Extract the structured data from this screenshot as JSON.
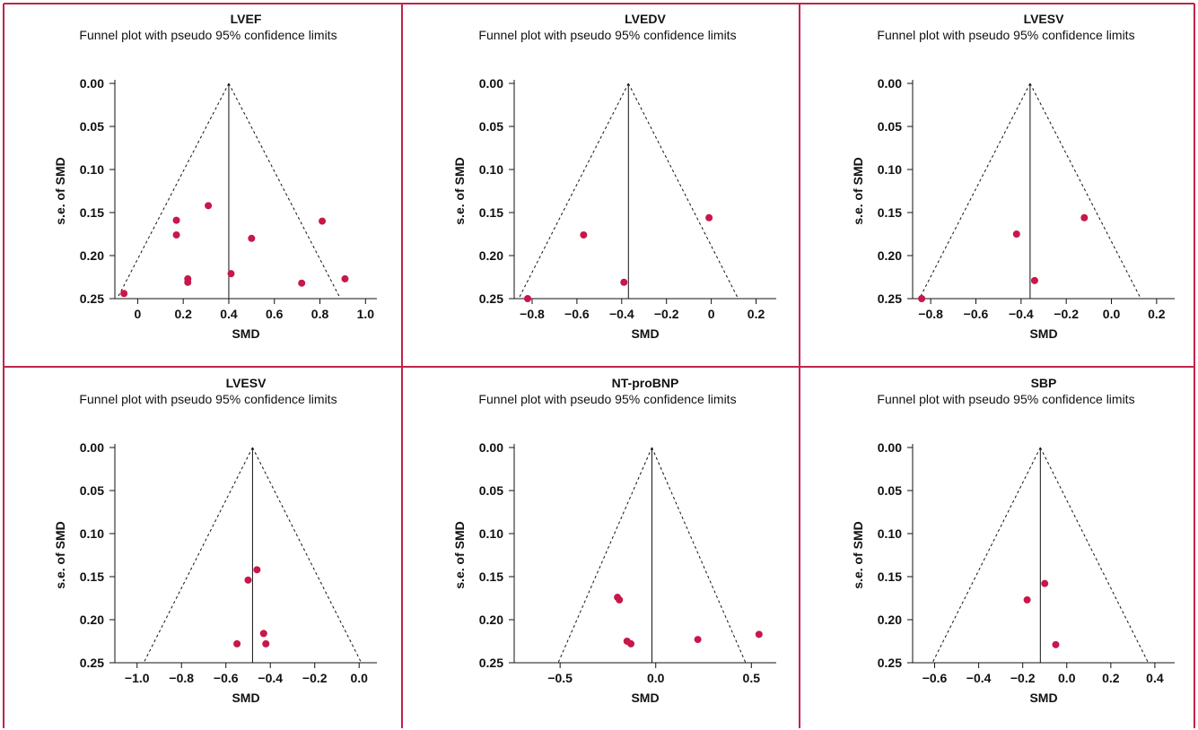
{
  "colors": {
    "point": "#c8174a",
    "border": "#c0244a",
    "axis": "#111111"
  },
  "chart_data": [
    {
      "type": "scatter",
      "title": "LVEF",
      "subtitle": "Funnel plot with pseudo 95% confidence limits",
      "xlabel": "SMD",
      "ylabel": "s.e. of SMD",
      "xlim": [
        -0.1,
        1.05
      ],
      "ylim": [
        0.25,
        0.0
      ],
      "xticks": [
        0,
        0.2,
        0.4,
        0.6,
        0.8,
        1.0
      ],
      "xtick_labels": [
        "0",
        "0.2",
        "0.4",
        "0.6",
        "0.8",
        "1.0"
      ],
      "yticks": [
        0.0,
        0.05,
        0.1,
        0.15,
        0.2,
        0.25
      ],
      "ytick_labels": [
        "0.00",
        "0.05",
        "0.10",
        "0.15",
        "0.20",
        "0.25"
      ],
      "pooled_effect": 0.4,
      "points": [
        {
          "x": -0.06,
          "y": 0.244
        },
        {
          "x": 0.17,
          "y": 0.159
        },
        {
          "x": 0.17,
          "y": 0.176
        },
        {
          "x": 0.22,
          "y": 0.227
        },
        {
          "x": 0.22,
          "y": 0.231
        },
        {
          "x": 0.31,
          "y": 0.142
        },
        {
          "x": 0.41,
          "y": 0.221
        },
        {
          "x": 0.5,
          "y": 0.18
        },
        {
          "x": 0.72,
          "y": 0.232
        },
        {
          "x": 0.81,
          "y": 0.16
        },
        {
          "x": 0.91,
          "y": 0.227
        }
      ]
    },
    {
      "type": "scatter",
      "title": "LVEDV",
      "subtitle": "Funnel plot with pseudo 95% confidence limits",
      "xlabel": "SMD",
      "ylabel": "s.e. of SMD",
      "xlim": [
        -0.88,
        0.29
      ],
      "ylim": [
        0.25,
        0.0
      ],
      "xticks": [
        -0.8,
        -0.6,
        -0.4,
        -0.2,
        0,
        0.2
      ],
      "xtick_labels": [
        "−0.8",
        "−0.6",
        "−0.4",
        "−0.2",
        "0",
        "0.2"
      ],
      "yticks": [
        0.0,
        0.05,
        0.1,
        0.15,
        0.2,
        0.25
      ],
      "ytick_labels": [
        "0.00",
        "0.05",
        "0.10",
        "0.15",
        "0.20",
        "0.25"
      ],
      "pooled_effect": -0.37,
      "points": [
        {
          "x": -0.82,
          "y": 0.25
        },
        {
          "x": -0.57,
          "y": 0.176
        },
        {
          "x": -0.39,
          "y": 0.231
        },
        {
          "x": -0.01,
          "y": 0.156
        }
      ]
    },
    {
      "type": "scatter",
      "title": "LVESV",
      "subtitle": "Funnel plot with pseudo 95% confidence limits",
      "xlabel": "SMD",
      "ylabel": "s.e. of SMD",
      "xlim": [
        -0.88,
        0.28
      ],
      "ylim": [
        0.25,
        0.0
      ],
      "xticks": [
        -0.8,
        -0.6,
        -0.4,
        -0.2,
        0,
        0.2
      ],
      "xtick_labels": [
        "−0.8",
        "−0.6",
        "−0.4",
        "−0.2",
        "0.0",
        "0.2"
      ],
      "yticks": [
        0.0,
        0.05,
        0.1,
        0.15,
        0.2,
        0.25
      ],
      "ytick_labels": [
        "0.00",
        "0.05",
        "0.10",
        "0.15",
        "0.20",
        "0.25"
      ],
      "pooled_effect": -0.36,
      "points": [
        {
          "x": -0.84,
          "y": 0.25
        },
        {
          "x": -0.42,
          "y": 0.175
        },
        {
          "x": -0.34,
          "y": 0.229
        },
        {
          "x": -0.12,
          "y": 0.156
        }
      ]
    },
    {
      "type": "scatter",
      "title": "LVESV",
      "subtitle": "Funnel plot with pseudo 95% confidence limits",
      "xlabel": "SMD",
      "ylabel": "s.e. of SMD",
      "xlim": [
        -1.1,
        0.08
      ],
      "ylim": [
        0.25,
        0.0
      ],
      "xticks": [
        -1.0,
        -0.8,
        -0.6,
        -0.4,
        -0.2,
        0
      ],
      "xtick_labels": [
        "−1.0",
        "−0.8",
        "−0.6",
        "−0.4",
        "−0.2",
        "0.0"
      ],
      "yticks": [
        0.0,
        0.05,
        0.1,
        0.15,
        0.2,
        0.25
      ],
      "ytick_labels": [
        "0.00",
        "0.05",
        "0.10",
        "0.15",
        "0.20",
        "0.25"
      ],
      "pooled_effect": -0.48,
      "points": [
        {
          "x": -0.55,
          "y": 0.228
        },
        {
          "x": -0.5,
          "y": 0.154
        },
        {
          "x": -0.46,
          "y": 0.142
        },
        {
          "x": -0.43,
          "y": 0.216
        },
        {
          "x": -0.42,
          "y": 0.228
        }
      ]
    },
    {
      "type": "scatter",
      "title": "NT-proBNP",
      "subtitle": "Funnel plot with pseudo 95% confidence limits",
      "xlabel": "SMD",
      "ylabel": "s.e. of SMD",
      "xlim": [
        -0.74,
        0.63
      ],
      "ylim": [
        0.25,
        0.0
      ],
      "xticks": [
        -0.5,
        0,
        0.5
      ],
      "xtick_labels": [
        "−0.5",
        "0.0",
        "0.5"
      ],
      "yticks": [
        0.0,
        0.05,
        0.1,
        0.15,
        0.2,
        0.25
      ],
      "ytick_labels": [
        "0.00",
        "0.05",
        "0.10",
        "0.15",
        "0.20",
        "0.25"
      ],
      "pooled_effect": -0.02,
      "points": [
        {
          "x": -0.2,
          "y": 0.174
        },
        {
          "x": -0.19,
          "y": 0.177
        },
        {
          "x": -0.15,
          "y": 0.225
        },
        {
          "x": -0.13,
          "y": 0.228
        },
        {
          "x": 0.22,
          "y": 0.223
        },
        {
          "x": 0.54,
          "y": 0.217
        }
      ]
    },
    {
      "type": "scatter",
      "title": "SBP",
      "subtitle": "Funnel plot with pseudo 95% confidence limits",
      "xlabel": "SMD",
      "ylabel": "s.e. of SMD",
      "xlim": [
        -0.7,
        0.49
      ],
      "ylim": [
        0.25,
        0.0
      ],
      "xticks": [
        -0.6,
        -0.4,
        -0.2,
        0,
        0.2,
        0.4
      ],
      "xtick_labels": [
        "−0.6",
        "−0.4",
        "−0.2",
        "0.0",
        "0.2",
        "0.4"
      ],
      "yticks": [
        0.0,
        0.05,
        0.1,
        0.15,
        0.2,
        0.25
      ],
      "ytick_labels": [
        "0.00",
        "0.05",
        "0.10",
        "0.15",
        "0.20",
        "0.25"
      ],
      "pooled_effect": -0.12,
      "points": [
        {
          "x": -0.18,
          "y": 0.177
        },
        {
          "x": -0.1,
          "y": 0.158
        },
        {
          "x": -0.05,
          "y": 0.229
        }
      ]
    }
  ]
}
